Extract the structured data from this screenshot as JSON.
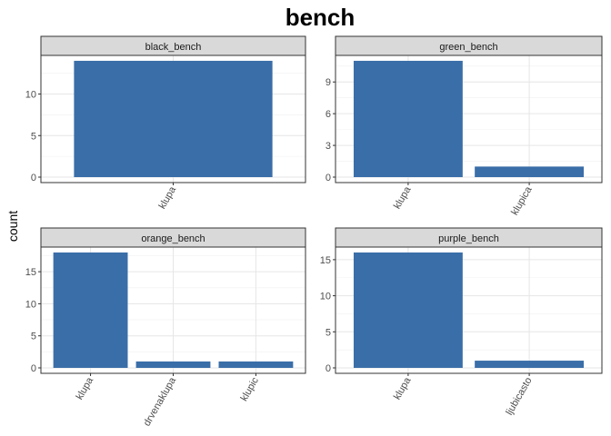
{
  "chart_data": {
    "type": "bar",
    "title": "bench",
    "ylabel": "count",
    "xlabel": "",
    "bar_color": "#3A6EA8",
    "strip_color": "#D9D9D9",
    "grid": true,
    "facets": [
      {
        "name": "black_bench",
        "categories": [
          "klupa"
        ],
        "values": [
          14
        ],
        "ylim": [
          0,
          14.7
        ],
        "yticks": [
          0,
          5,
          10
        ]
      },
      {
        "name": "green_bench",
        "categories": [
          "klupa",
          "klupica"
        ],
        "values": [
          11,
          1
        ],
        "ylim": [
          0,
          11.55
        ],
        "yticks": [
          0,
          3,
          6,
          9
        ]
      },
      {
        "name": "orange_bench",
        "categories": [
          "klupa",
          "drvenaklupa",
          "klupic"
        ],
        "values": [
          18,
          1,
          1
        ],
        "ylim": [
          0,
          18.9
        ],
        "yticks": [
          0,
          5,
          10,
          15
        ]
      },
      {
        "name": "purple_bench",
        "categories": [
          "klupa",
          "ljubicasto"
        ],
        "values": [
          16,
          1
        ],
        "ylim": [
          0,
          16.8
        ],
        "yticks": [
          0,
          5,
          10,
          15
        ]
      }
    ]
  }
}
